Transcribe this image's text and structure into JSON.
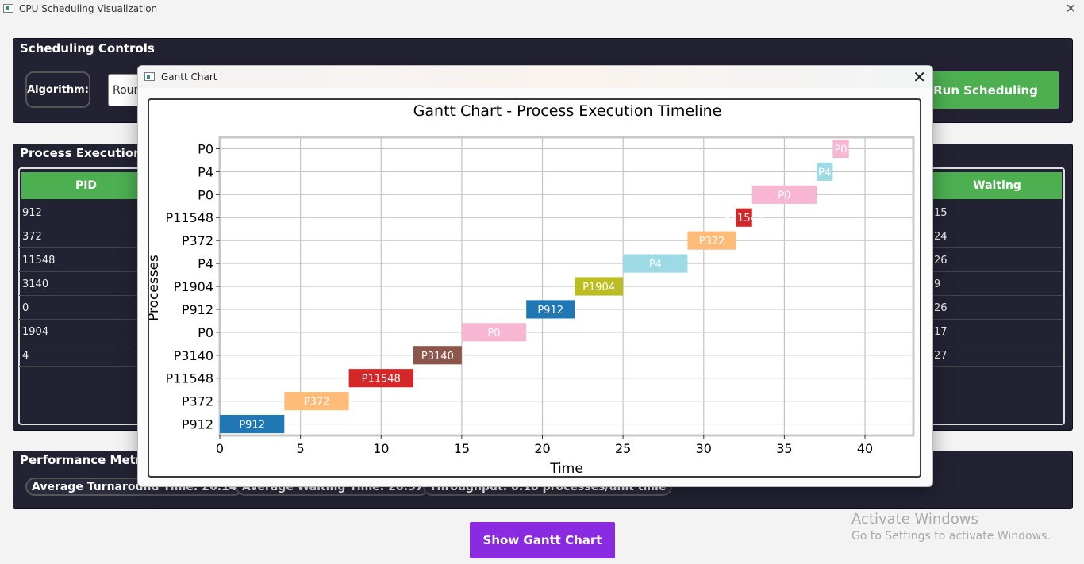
{
  "window": {
    "title": "CPU Scheduling Visualization",
    "close_glyph": "✕"
  },
  "controls": {
    "title": "Scheduling Controls",
    "algorithm_label": "Algorithm:",
    "algorithm_value": "Round Robin",
    "run_label": "Run Scheduling"
  },
  "process_panel": {
    "title": "Process Execution D",
    "headers": [
      "PID",
      "Waiting"
    ],
    "pids": [
      "912",
      "372",
      "11548",
      "3140",
      "0",
      "1904",
      "4"
    ],
    "waiting": [
      "15",
      "24",
      "26",
      "9",
      "26",
      "17",
      "27"
    ]
  },
  "metrics": {
    "title": "Performance Metric",
    "items": [
      "Average Turnaround Time: 26.14",
      "Average Waiting Time: 20.57",
      "Throughput: 0.18 processes/unit time"
    ]
  },
  "gantt_button_label": "Show Gantt Chart",
  "watermark": {
    "line1": "Activate Windows",
    "line2": "Go to Settings to activate Windows."
  },
  "dialog": {
    "title": "Gantt Chart",
    "close_glyph": "✕"
  },
  "colors": {
    "green": "#4caf50",
    "purple": "#8a2be2",
    "panel": "#222233"
  },
  "chart_data": {
    "type": "bar",
    "orientation": "horizontal",
    "title": "Gantt Chart - Process Execution Timeline",
    "xlabel": "Time",
    "ylabel": "Processes",
    "xlim": [
      0,
      43
    ],
    "xticks": [
      0,
      5,
      10,
      15,
      20,
      25,
      30,
      35,
      40
    ],
    "grid": true,
    "rows": [
      "P912",
      "P372",
      "P11548",
      "P3140",
      "P0",
      "P912",
      "P1904",
      "P4",
      "P372",
      "P11548",
      "P0",
      "P4",
      "P0"
    ],
    "bars": [
      {
        "label": "P912",
        "start": 0,
        "end": 4,
        "color": "#1f77b4"
      },
      {
        "label": "P372",
        "start": 4,
        "end": 8,
        "color": "#ffbb78"
      },
      {
        "label": "P11548",
        "start": 8,
        "end": 12,
        "color": "#d62728"
      },
      {
        "label": "P3140",
        "start": 12,
        "end": 15,
        "color": "#8c564b"
      },
      {
        "label": "P0",
        "start": 15,
        "end": 19,
        "color": "#f7b6d2"
      },
      {
        "label": "P912",
        "start": 19,
        "end": 22,
        "color": "#1f77b4"
      },
      {
        "label": "P1904",
        "start": 22,
        "end": 25,
        "color": "#bcbd22"
      },
      {
        "label": "P4",
        "start": 25,
        "end": 29,
        "color": "#9edae5"
      },
      {
        "label": "P372",
        "start": 29,
        "end": 32,
        "color": "#ffbb78"
      },
      {
        "label": "P11548",
        "start": 32,
        "end": 33,
        "color": "#d62728"
      },
      {
        "label": "P0",
        "start": 33,
        "end": 37,
        "color": "#f7b6d2"
      },
      {
        "label": "P4",
        "start": 37,
        "end": 38,
        "color": "#9edae5"
      },
      {
        "label": "P0",
        "start": 38,
        "end": 39,
        "color": "#f7b6d2"
      }
    ]
  }
}
